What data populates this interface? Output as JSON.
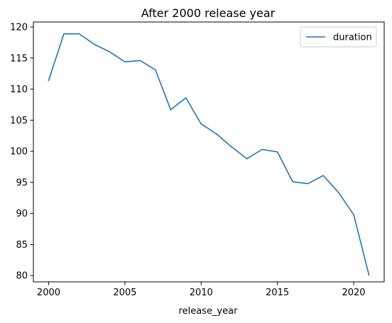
{
  "chart_data": {
    "type": "line",
    "title": "After 2000 release year",
    "xlabel": "release_year",
    "ylabel": "",
    "xlim": [
      1999,
      2022
    ],
    "ylim": [
      79,
      120.8
    ],
    "xticks": [
      2000,
      2005,
      2010,
      2015,
      2020
    ],
    "yticks": [
      80,
      85,
      90,
      95,
      100,
      105,
      110,
      115,
      120
    ],
    "grid": false,
    "legend": "top-right",
    "x": [
      2000,
      2001,
      2002,
      2003,
      2004,
      2005,
      2006,
      2007,
      2008,
      2009,
      2010,
      2011,
      2012,
      2013,
      2014,
      2015,
      2016,
      2017,
      2018,
      2019,
      2020,
      2021
    ],
    "series": [
      {
        "name": "duration",
        "color": "#1f77b4",
        "values": [
          111.4,
          118.9,
          118.9,
          117.2,
          116.0,
          114.4,
          114.6,
          113.1,
          106.7,
          108.6,
          104.4,
          102.8,
          100.7,
          98.8,
          100.3,
          99.9,
          95.1,
          94.8,
          96.1,
          93.4,
          89.8,
          80.1
        ]
      }
    ]
  }
}
